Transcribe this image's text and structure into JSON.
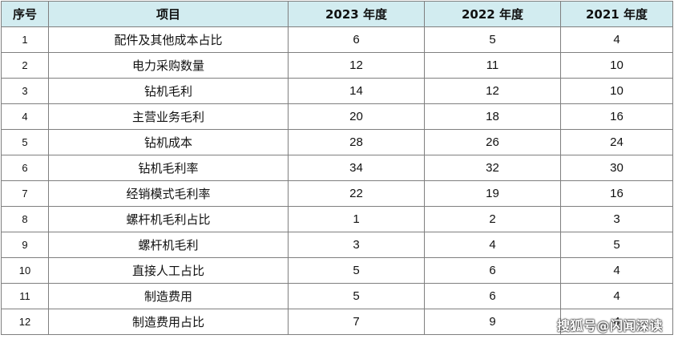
{
  "table": {
    "headers": [
      "序号",
      "项目",
      "2023 年度",
      "2022 年度",
      "2021 年度"
    ],
    "rows": [
      [
        "1",
        "配件及其他成本占比",
        "6",
        "5",
        "4"
      ],
      [
        "2",
        "电力采购数量",
        "12",
        "11",
        "10"
      ],
      [
        "3",
        "钻机毛利",
        "14",
        "12",
        "10"
      ],
      [
        "4",
        "主营业务毛利",
        "20",
        "18",
        "16"
      ],
      [
        "5",
        "钻机成本",
        "28",
        "26",
        "24"
      ],
      [
        "6",
        "钻机毛利率",
        "34",
        "32",
        "30"
      ],
      [
        "7",
        "经销模式毛利率",
        "22",
        "19",
        "16"
      ],
      [
        "8",
        "螺杆机毛利占比",
        "1",
        "2",
        "3"
      ],
      [
        "9",
        "螺杆机毛利",
        "3",
        "4",
        "5"
      ],
      [
        "10",
        "直接人工占比",
        "5",
        "6",
        "4"
      ],
      [
        "11",
        "制造费用",
        "5",
        "6",
        "4"
      ],
      [
        "12",
        "制造费用占比",
        "7",
        "9",
        "4"
      ]
    ]
  },
  "watermark": "搜狐号@闪闻深读",
  "colors": {
    "header_bg": "#d2ecf0",
    "border": "#7f7f7f",
    "text": "#111111"
  }
}
